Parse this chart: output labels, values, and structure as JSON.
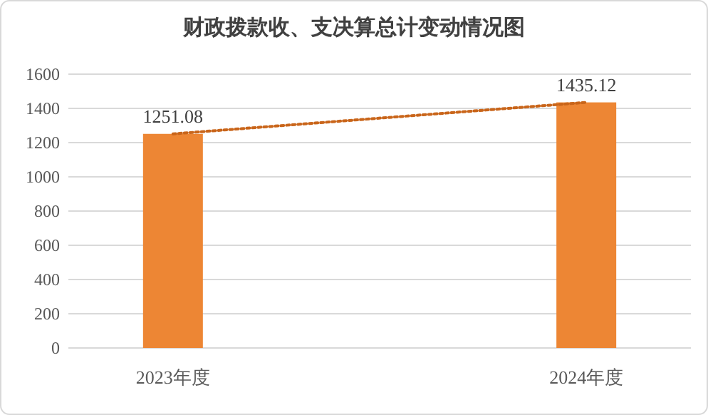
{
  "chart_data": {
    "type": "bar",
    "title": "财政拨款收、支决算总计变动情况图",
    "categories": [
      "2023年度",
      "2024年度"
    ],
    "series": [
      {
        "color": "#ed8634",
        "values": [
          1251.08,
          1435.12
        ],
        "data_labels": true
      },
      {
        "type": "line",
        "color": "#c9651a",
        "values": [
          1251,
          1435
        ],
        "line_style": "dotted"
      }
    ],
    "ylim": [
      0,
      1600
    ],
    "yticks": [
      0,
      200,
      400,
      600,
      800,
      1000,
      1200,
      1400,
      1600
    ],
    "grid": "y"
  }
}
